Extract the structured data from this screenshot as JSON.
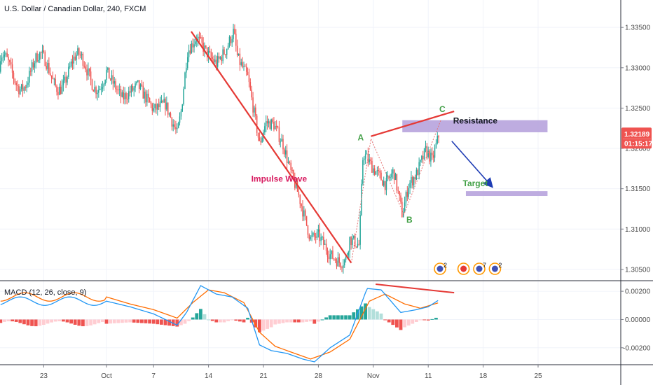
{
  "chart_data": {
    "type": "candlestick",
    "title": "U.S. Dollar / Canadian Dollar, 240, FXCM",
    "symbol": "USDCAD",
    "timeframe": "240",
    "source": "FXCM",
    "x_tick_labels": [
      "23",
      "Oct",
      "7",
      "14",
      "21",
      "28",
      "Nov",
      "11",
      "18",
      "25"
    ],
    "y_tick_labels": [
      "1.33500",
      "1.33000",
      "1.32500",
      "1.32000",
      "1.31500",
      "1.31000",
      "1.30500"
    ],
    "y_ticks": [
      1.335,
      1.33,
      1.325,
      1.32,
      1.315,
      1.31,
      1.305
    ],
    "ylim": [
      1.3036,
      1.3384
    ],
    "last_price_label": "1.32189",
    "countdown_label": "01:15:17",
    "price_path": [
      {
        "d": 0,
        "v": 1.3295
      },
      {
        "d": 2,
        "v": 1.3262
      },
      {
        "d": 4,
        "v": 1.3278
      },
      {
        "d": 6,
        "v": 1.3248
      },
      {
        "d": 7.5,
        "v": 1.3255
      },
      {
        "d": 9,
        "v": 1.3218
      },
      {
        "d": 9.5,
        "v": 1.3245
      },
      {
        "d": 10.3,
        "v": 1.332
      },
      {
        "d": 11.5,
        "v": 1.3338
      },
      {
        "d": 12.8,
        "v": 1.3318
      },
      {
        "d": 14,
        "v": 1.3305
      },
      {
        "d": 15.2,
        "v": 1.3322
      },
      {
        "d": 16.2,
        "v": 1.3345
      },
      {
        "d": 16.7,
        "v": 1.3312
      },
      {
        "d": 18,
        "v": 1.3288
      },
      {
        "d": 18.8,
        "v": 1.3245
      },
      {
        "d": 19.5,
        "v": 1.3205
      },
      {
        "d": 20.3,
        "v": 1.3232
      },
      {
        "d": 21.3,
        "v": 1.323
      },
      {
        "d": 22.5,
        "v": 1.3205
      },
      {
        "d": 23.5,
        "v": 1.317
      },
      {
        "d": 24.5,
        "v": 1.3142
      },
      {
        "d": 25.3,
        "v": 1.3112
      },
      {
        "d": 26,
        "v": 1.3088
      },
      {
        "d": 27,
        "v": 1.3092
      },
      {
        "d": 28.5,
        "v": 1.3068
      },
      {
        "d": 29.8,
        "v": 1.3058
      },
      {
        "d": 30.5,
        "v": 1.3062
      },
      {
        "d": 31,
        "v": 1.3088
      },
      {
        "d": 32.2,
        "v": 1.308
      },
      {
        "d": 32.7,
        "v": 1.3195
      },
      {
        "d": 34,
        "v": 1.3175
      },
      {
        "d": 35.6,
        "v": 1.3155
      },
      {
        "d": 36.6,
        "v": 1.3172
      },
      {
        "d": 37.7,
        "v": 1.3118
      },
      {
        "d": 38.5,
        "v": 1.3155
      },
      {
        "d": 39.5,
        "v": 1.3168
      },
      {
        "d": 40.7,
        "v": 1.3198
      },
      {
        "d": 41.5,
        "v": 1.3185
      },
      {
        "d": 42.4,
        "v": 1.3218
      }
    ],
    "macd": {
      "label": "MACD (12, 26, close, 9)",
      "params": [
        12,
        26,
        9
      ],
      "y_tick_labels": [
        "0.00200",
        "0.00000",
        "-0.00200"
      ],
      "y_ticks": [
        0.002,
        0.0,
        -0.002
      ],
      "ylim": [
        -0.0032,
        0.0027
      ],
      "macd_line_path": [
        {
          "d": 0,
          "v": 0.0013
        },
        {
          "d": 3,
          "v": 0.0009
        },
        {
          "d": 6,
          "v": 0.0004
        },
        {
          "d": 9,
          "v": -0.0004
        },
        {
          "d": 10.2,
          "v": 0.0005
        },
        {
          "d": 12,
          "v": 0.0024
        },
        {
          "d": 14,
          "v": 0.0018
        },
        {
          "d": 16,
          "v": 0.0016
        },
        {
          "d": 18,
          "v": 0.0008
        },
        {
          "d": 19.5,
          "v": -0.0018
        },
        {
          "d": 21,
          "v": -0.0022
        },
        {
          "d": 23,
          "v": -0.0024
        },
        {
          "d": 25,
          "v": -0.0028
        },
        {
          "d": 26.5,
          "v": -0.003
        },
        {
          "d": 28.5,
          "v": -0.002
        },
        {
          "d": 31,
          "v": -0.0011
        },
        {
          "d": 33.2,
          "v": 0.0022
        },
        {
          "d": 35,
          "v": 0.0021
        },
        {
          "d": 37.5,
          "v": 0.0005
        },
        {
          "d": 39.5,
          "v": 0.0007
        },
        {
          "d": 41,
          "v": 0.0009
        },
        {
          "d": 42.4,
          "v": 0.0014
        }
      ],
      "signal_line_path": [
        {
          "d": 0,
          "v": 0.0016
        },
        {
          "d": 3,
          "v": 0.0011
        },
        {
          "d": 6,
          "v": 0.0007
        },
        {
          "d": 9,
          "v": 0.0001
        },
        {
          "d": 11,
          "v": 0.0012
        },
        {
          "d": 13,
          "v": 0.0021
        },
        {
          "d": 15,
          "v": 0.0019
        },
        {
          "d": 17.5,
          "v": 0.0012
        },
        {
          "d": 19.5,
          "v": -0.0009
        },
        {
          "d": 21.5,
          "v": -0.0019
        },
        {
          "d": 24,
          "v": -0.0024
        },
        {
          "d": 26,
          "v": -0.0028
        },
        {
          "d": 28.5,
          "v": -0.0023
        },
        {
          "d": 31,
          "v": -0.0014
        },
        {
          "d": 33.5,
          "v": 0.0013
        },
        {
          "d": 35.5,
          "v": 0.0018
        },
        {
          "d": 38,
          "v": 0.0011
        },
        {
          "d": 40,
          "v": 0.0008
        },
        {
          "d": 42.4,
          "v": 0.0012
        }
      ]
    },
    "annotations": [
      {
        "type": "text",
        "text": "Impulse Wave",
        "color": "#d81b60",
        "at": {
          "d": 22.0,
          "v": 1.3159
        }
      },
      {
        "type": "text",
        "text": "A",
        "color": "#43a047",
        "at": {
          "d": 32.4,
          "v": 1.321
        }
      },
      {
        "type": "text",
        "text": "B",
        "color": "#43a047",
        "at": {
          "d": 38.6,
          "v": 1.3108
        }
      },
      {
        "type": "text",
        "text": "C",
        "color": "#43a047",
        "at": {
          "d": 42.8,
          "v": 1.3245
        }
      },
      {
        "type": "text",
        "text": "Resistance",
        "color": "#131722",
        "at": {
          "d": 47.0,
          "v": 1.3231
        }
      },
      {
        "type": "text",
        "text": "Target",
        "color": "#43a047",
        "at": {
          "d": 47.0,
          "v": 1.3153
        }
      }
    ],
    "colors": {
      "up": "#26a69a",
      "down": "#ef5350",
      "trend_line": "#e53935",
      "resistance_zone": "#b39ddb",
      "arrow": "#1e3cb4",
      "macd_line": "#2196f3",
      "signal_line": "#ff6d00",
      "hist_up_strong": "#26a69a",
      "hist_up_weak": "#b2dfdb",
      "hist_down_strong": "#ef5350",
      "hist_down_weak": "#ffcdd2",
      "price_tag": "#ef5350",
      "impulse_text": "#d81b60",
      "abc_text": "#43a047"
    },
    "event_badges": [
      "2",
      "7",
      "2"
    ]
  }
}
